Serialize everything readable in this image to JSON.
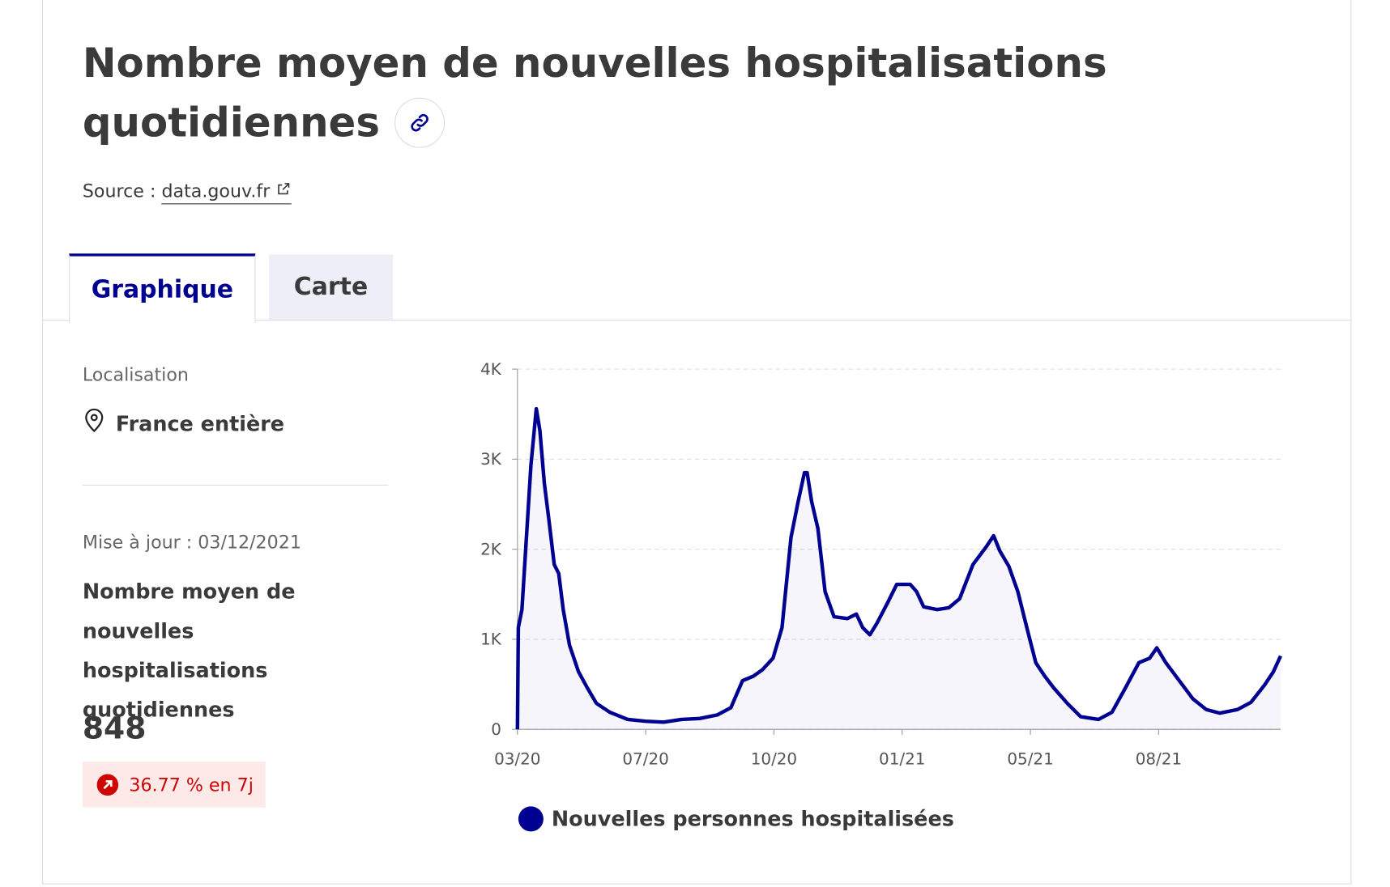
{
  "header": {
    "title": "Nombre moyen de nouvelles hospitalisations quotidiennes",
    "source_label": "Source :",
    "source_link": "data.gouv.fr"
  },
  "tabs": [
    "Graphique",
    "Carte"
  ],
  "panel": {
    "location_label": "Localisation",
    "location": "France entière",
    "updated": "Mise à jour : 03/12/2021",
    "indicator": "Nombre moyen de nouvelles hospitalisations quotidiennes",
    "value": "848",
    "trend": "36.77 % en 7j"
  },
  "chart_data": {
    "type": "line",
    "x": [
      0,
      0.007,
      0.035,
      0.07,
      0.105,
      0.147,
      0.175,
      0.21,
      0.245,
      0.287,
      0.322,
      0.357,
      0.406,
      0.476,
      0.545,
      0.615,
      0.72,
      0.86,
      1.0,
      1.14,
      1.28,
      1.42,
      1.559,
      1.664,
      1.755,
      1.839,
      1.909,
      1.993,
      2.063,
      2.133,
      2.189,
      2.238,
      2.259,
      2.294,
      2.343,
      2.399,
      2.469,
      2.573,
      2.643,
      2.692,
      2.748,
      2.804,
      2.888,
      2.958,
      3.063,
      3.112,
      3.168,
      3.273,
      3.364,
      3.448,
      3.552,
      3.657,
      3.713,
      3.762,
      3.832,
      3.902,
      3.972,
      4.042,
      4.112,
      4.182,
      4.287,
      4.392,
      4.531,
      4.636,
      4.741,
      4.846,
      4.93,
      4.986,
      5.056,
      5.161,
      5.266,
      5.371,
      5.476,
      5.615,
      5.72,
      5.825,
      5.895,
      5.951
    ],
    "series": [
      {
        "name": "Nouvelles personnes hospitalisées",
        "color": "#000091",
        "values": [
          0,
          1130,
          1330,
          2130,
          2930,
          3560,
          3320,
          2730,
          2330,
          1830,
          1730,
          1330,
          935,
          640,
          460,
          290,
          190,
          110,
          90,
          80,
          110,
          120,
          160,
          240,
          540,
          590,
          660,
          790,
          1130,
          2130,
          2530,
          2850,
          2850,
          2530,
          2230,
          1530,
          1250,
          1230,
          1280,
          1130,
          1050,
          1180,
          1410,
          1610,
          1610,
          1530,
          1360,
          1330,
          1350,
          1450,
          1830,
          2030,
          2150,
          1980,
          1810,
          1530,
          1130,
          740,
          590,
          460,
          290,
          140,
          110,
          190,
          460,
          740,
          790,
          905,
          740,
          540,
          340,
          220,
          180,
          220,
          300,
          490,
          640,
          815
        ]
      }
    ],
    "xlim": [
      0,
      5.951
    ],
    "xticks": [
      {
        "value": 0,
        "label": "03/20"
      },
      {
        "value": 1,
        "label": "07/20"
      },
      {
        "value": 2,
        "label": "10/20"
      },
      {
        "value": 3,
        "label": "01/21"
      },
      {
        "value": 4,
        "label": "05/21"
      },
      {
        "value": 5,
        "label": "08/21"
      }
    ],
    "ylim": [
      0,
      4000
    ],
    "yticks": [
      0,
      {
        "value": 1000,
        "label": "1K"
      },
      {
        "value": 2000,
        "label": "2K"
      },
      {
        "value": 3000,
        "label": "3K"
      },
      {
        "value": 4000,
        "label": "4K"
      }
    ],
    "grid": true
  }
}
